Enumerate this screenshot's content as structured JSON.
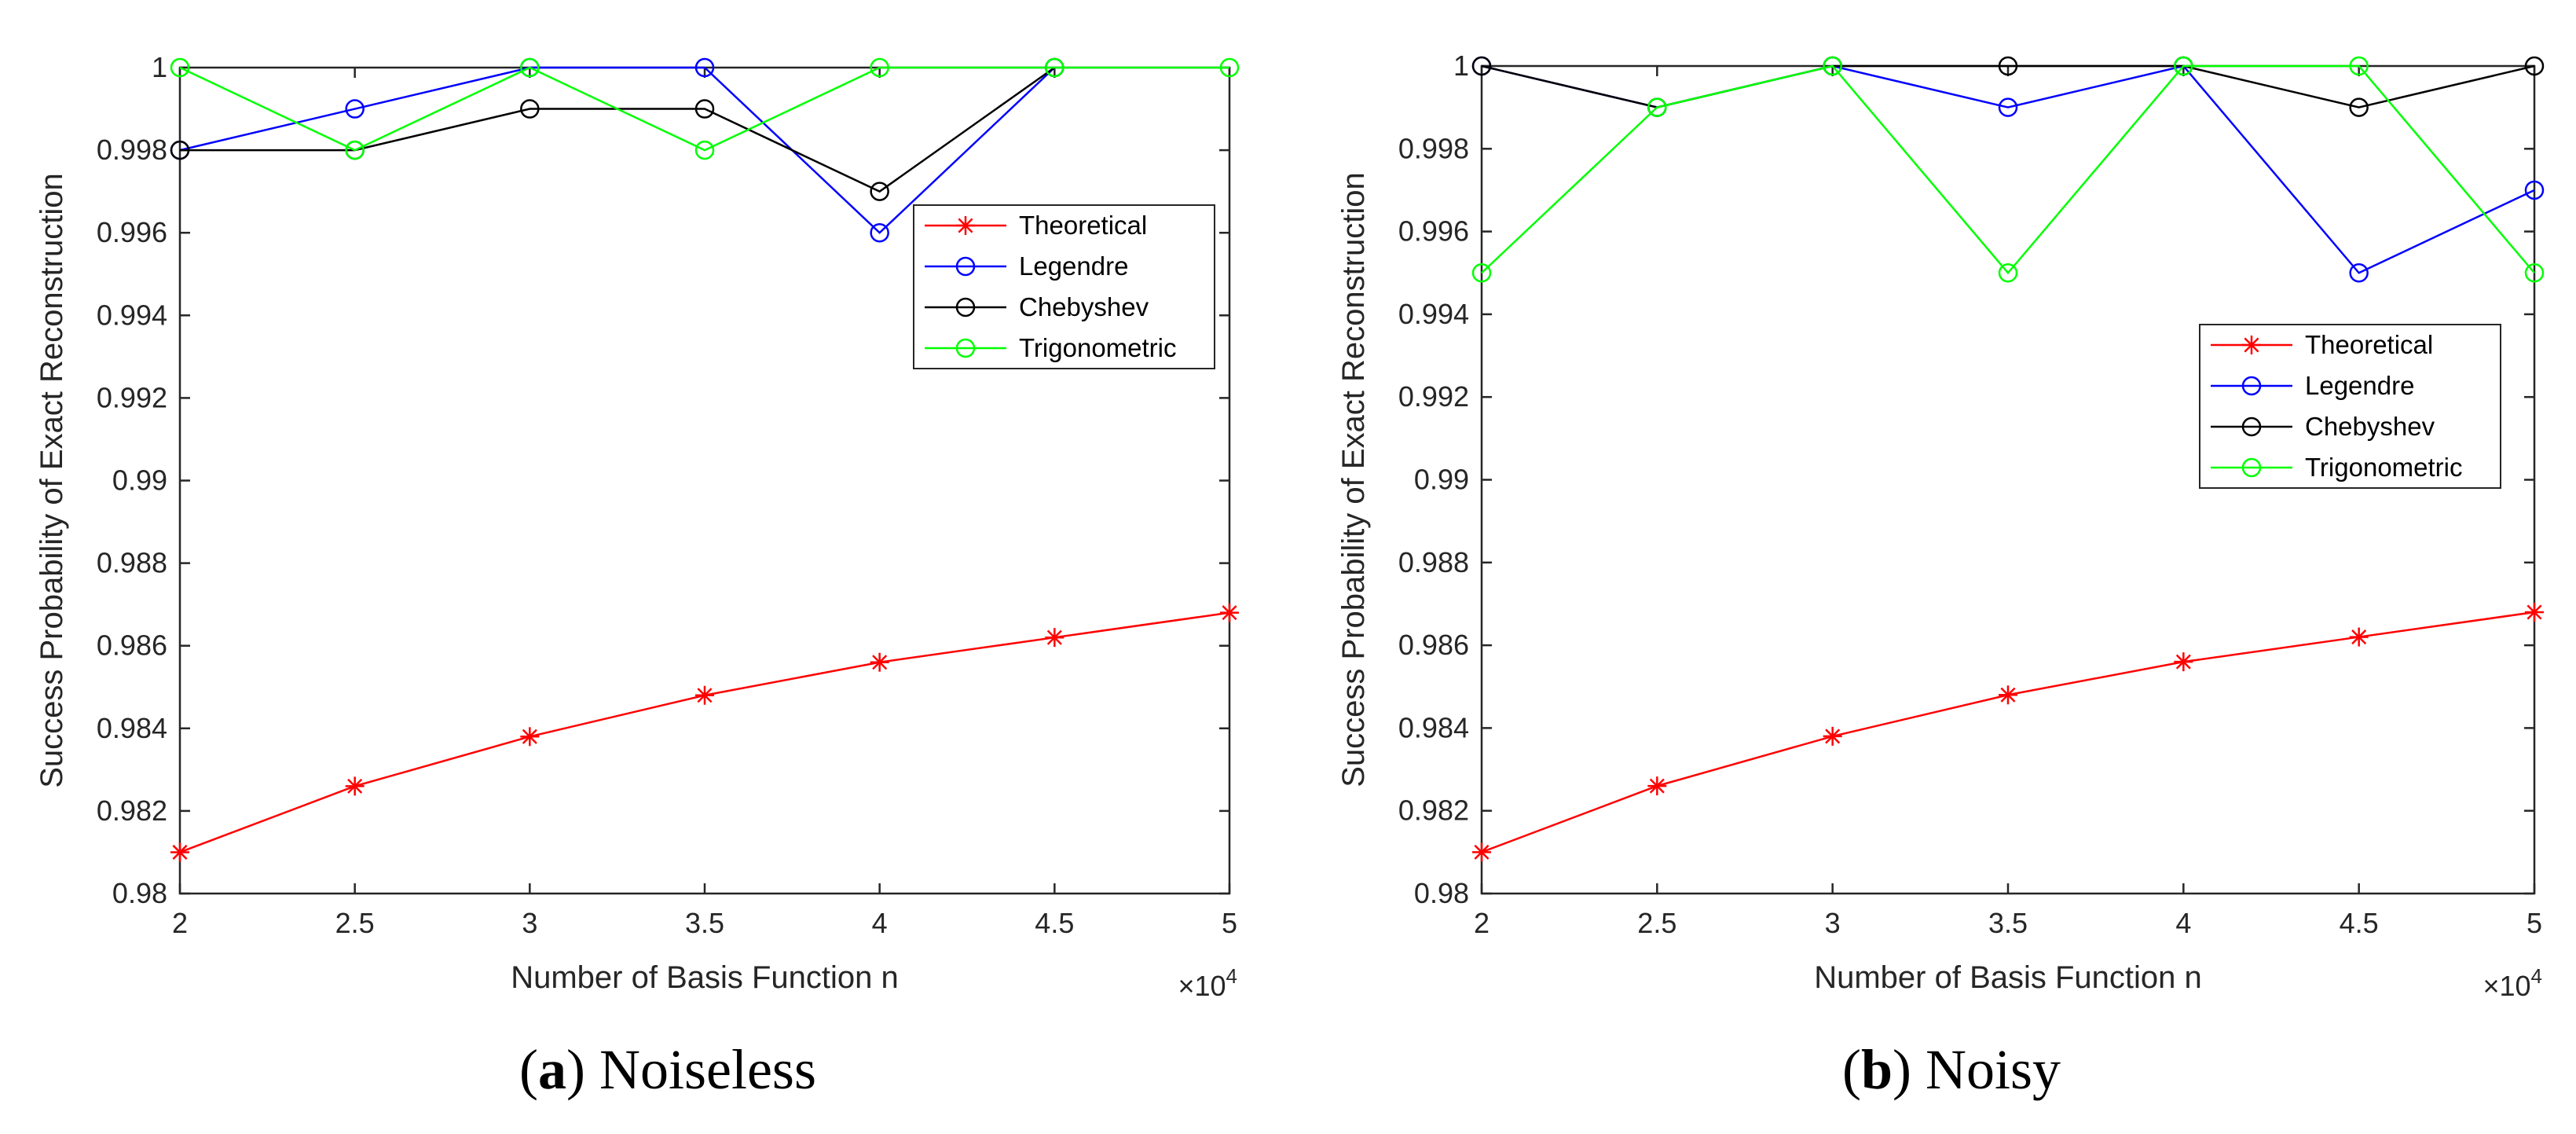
{
  "chart_data": [
    {
      "type": "line",
      "panel_letter": "a",
      "caption": "Noiseless",
      "xlabel": "Number of Basis Function n",
      "ylabel": "Success Probability of Exact Reconstruction",
      "x_multiplier_base": "×10",
      "x_multiplier_exp": "4",
      "xlim": [
        2,
        5
      ],
      "ylim": [
        0.98,
        1.0
      ],
      "x": [
        2,
        2.5,
        3,
        3.5,
        4,
        4.5,
        5
      ],
      "x_tick_labels": [
        "2",
        "2.5",
        "3",
        "3.5",
        "4",
        "4.5",
        "5"
      ],
      "y_ticks": [
        0.98,
        0.982,
        0.984,
        0.986,
        0.988,
        0.99,
        0.992,
        0.994,
        0.996,
        0.998,
        1.0
      ],
      "y_tick_labels": [
        "0.98",
        "0.982",
        "0.984",
        "0.986",
        "0.988",
        "0.99",
        "0.992",
        "0.994",
        "0.996",
        "0.998",
        "1"
      ],
      "legend_position": "upper-right",
      "series": [
        {
          "name": "Theoretical",
          "color": "#ff0000",
          "marker": "asterisk",
          "values": [
            0.981,
            0.9826,
            0.9838,
            0.9848,
            0.9856,
            0.9862,
            0.9868
          ]
        },
        {
          "name": "Legendre",
          "color": "#0000ff",
          "marker": "circle",
          "values": [
            0.998,
            0.999,
            1.0,
            1.0,
            0.996,
            1.0,
            null
          ]
        },
        {
          "name": "Chebyshev",
          "color": "#000000",
          "marker": "circle",
          "values": [
            0.998,
            0.998,
            0.999,
            0.999,
            0.997,
            1.0,
            null
          ]
        },
        {
          "name": "Trigonometric",
          "color": "#00ff00",
          "marker": "circle",
          "values": [
            1.0,
            0.998,
            1.0,
            0.998,
            1.0,
            1.0,
            1.0
          ]
        }
      ]
    },
    {
      "type": "line",
      "panel_letter": "b",
      "caption": "Noisy",
      "xlabel": "Number of Basis Function n",
      "ylabel": "Success Probability of Exact Reconstruction",
      "x_multiplier_base": "×10",
      "x_multiplier_exp": "4",
      "xlim": [
        2,
        5
      ],
      "ylim": [
        0.98,
        1.0
      ],
      "x": [
        2,
        2.5,
        3,
        3.5,
        4,
        4.5,
        5
      ],
      "x_tick_labels": [
        "2",
        "2.5",
        "3",
        "3.5",
        "4",
        "4.5",
        "5"
      ],
      "y_ticks": [
        0.98,
        0.982,
        0.984,
        0.986,
        0.988,
        0.99,
        0.992,
        0.994,
        0.996,
        0.998,
        1.0
      ],
      "y_tick_labels": [
        "0.98",
        "0.982",
        "0.984",
        "0.986",
        "0.988",
        "0.99",
        "0.992",
        "0.994",
        "0.996",
        "0.998",
        "1"
      ],
      "legend_position": "right-middle",
      "series": [
        {
          "name": "Theoretical",
          "color": "#ff0000",
          "marker": "asterisk",
          "values": [
            0.981,
            0.9826,
            0.9838,
            0.9848,
            0.9856,
            0.9862,
            0.9868
          ]
        },
        {
          "name": "Legendre",
          "color": "#0000ff",
          "marker": "circle",
          "values": [
            1.0,
            0.999,
            1.0,
            0.999,
            1.0,
            0.995,
            0.997
          ]
        },
        {
          "name": "Chebyshev",
          "color": "#000000",
          "marker": "circle",
          "values": [
            1.0,
            0.999,
            1.0,
            1.0,
            1.0,
            0.999,
            1.0
          ]
        },
        {
          "name": "Trigonometric",
          "color": "#00ff00",
          "marker": "circle",
          "values": [
            0.995,
            0.999,
            1.0,
            0.995,
            1.0,
            1.0,
            0.995
          ]
        }
      ]
    }
  ]
}
